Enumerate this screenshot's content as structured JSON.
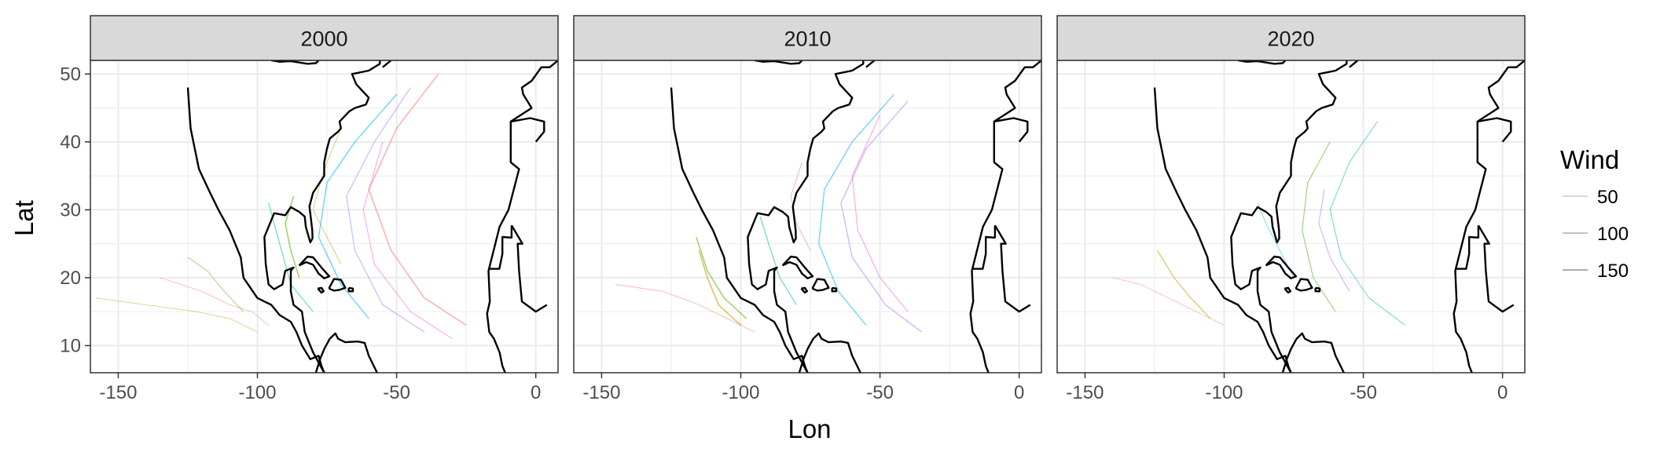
{
  "chart_data": {
    "type": "line",
    "subtype": "faceted map of storm tracks",
    "xlabel": "Lon",
    "ylabel": "Lat",
    "xlim": [
      -160,
      8
    ],
    "ylim": [
      6,
      52
    ],
    "xticks": [
      -150,
      -100,
      -50,
      0
    ],
    "xtick_labels": [
      "-150",
      "-100",
      "-50",
      "0"
    ],
    "yticks": [
      10,
      20,
      30,
      40,
      50
    ],
    "ytick_labels": [
      "10",
      "20",
      "30",
      "40",
      "50"
    ],
    "grid": true,
    "facets": [
      "2000",
      "2010",
      "2020"
    ],
    "legend": {
      "title": "Wind",
      "position": "right",
      "entries": [
        {
          "label": "50",
          "value": 50
        },
        {
          "label": "100",
          "value": 100
        },
        {
          "label": "150",
          "value": 150
        }
      ]
    },
    "colors": {
      "grid": "#ebebeb",
      "strip_fill": "#d9d9d9",
      "map_outline": "#000000",
      "track_palette": [
        "#f8766d",
        "#c49a00",
        "#53b400",
        "#00c094",
        "#00b6eb",
        "#a58aff",
        "#fb61d7"
      ]
    },
    "storm_tracks": [
      {
        "facet": "2000",
        "lon": [
          -96,
          -102,
          -110,
          -120,
          -135
        ],
        "lat": [
          13,
          15,
          16,
          18,
          20
        ],
        "wind": 45
      },
      {
        "facet": "2000",
        "lon": [
          -100,
          -110,
          -122,
          -140,
          -158
        ],
        "lat": [
          12,
          14,
          15,
          16,
          17
        ],
        "wind": 40
      },
      {
        "facet": "2000",
        "lon": [
          -105,
          -112,
          -118,
          -125
        ],
        "lat": [
          15,
          18,
          21,
          23
        ],
        "wind": 60
      },
      {
        "facet": "2000",
        "lon": [
          -80,
          -88,
          -92,
          -96
        ],
        "lat": [
          15,
          19,
          25,
          31
        ],
        "wind": 85
      },
      {
        "facet": "2000",
        "lon": [
          -60,
          -70,
          -78,
          -75,
          -65,
          -50
        ],
        "lat": [
          14,
          19,
          26,
          34,
          40,
          47
        ],
        "wind": 110
      },
      {
        "facet": "2000",
        "lon": [
          -40,
          -55,
          -65,
          -68,
          -58,
          -45
        ],
        "lat": [
          12,
          16,
          24,
          32,
          40,
          48
        ],
        "wind": 95
      },
      {
        "facet": "2000",
        "lon": [
          -30,
          -45,
          -58,
          -62,
          -55
        ],
        "lat": [
          11,
          15,
          22,
          30,
          40
        ],
        "wind": 70
      },
      {
        "facet": "2000",
        "lon": [
          -25,
          -40,
          -52,
          -60,
          -50,
          -35
        ],
        "lat": [
          13,
          17,
          24,
          33,
          42,
          50
        ],
        "wind": 120
      },
      {
        "facet": "2000",
        "lon": [
          -70,
          -75,
          -80,
          -76,
          -70
        ],
        "lat": [
          22,
          26,
          30,
          36,
          42
        ],
        "wind": 55
      },
      {
        "facet": "2000",
        "lon": [
          -85,
          -88,
          -90,
          -87
        ],
        "lat": [
          20,
          24,
          28,
          32
        ],
        "wind": 130
      },
      {
        "facet": "2010",
        "lon": [
          -95,
          -105,
          -115,
          -128,
          -145
        ],
        "lat": [
          12,
          14,
          16,
          18,
          19
        ],
        "wind": 50
      },
      {
        "facet": "2010",
        "lon": [
          -100,
          -108,
          -112,
          -115
        ],
        "lat": [
          13,
          16,
          20,
          24
        ],
        "wind": 140
      },
      {
        "facet": "2010",
        "lon": [
          -98,
          -106,
          -112,
          -116
        ],
        "lat": [
          14,
          17,
          21,
          26
        ],
        "wind": 120
      },
      {
        "facet": "2010",
        "lon": [
          -80,
          -86,
          -90,
          -93
        ],
        "lat": [
          16,
          20,
          25,
          29
        ],
        "wind": 90
      },
      {
        "facet": "2010",
        "lon": [
          -55,
          -65,
          -72,
          -70,
          -60,
          -45
        ],
        "lat": [
          13,
          18,
          25,
          33,
          40,
          47
        ],
        "wind": 100
      },
      {
        "facet": "2010",
        "lon": [
          -35,
          -48,
          -60,
          -64,
          -55,
          -40
        ],
        "lat": [
          12,
          16,
          23,
          31,
          39,
          46
        ],
        "wind": 110
      },
      {
        "facet": "2010",
        "lon": [
          -40,
          -50,
          -58,
          -60,
          -50
        ],
        "lat": [
          15,
          20,
          27,
          35,
          44
        ],
        "wind": 75
      },
      {
        "facet": "2010",
        "lon": [
          -75,
          -80,
          -82,
          -78
        ],
        "lat": [
          24,
          28,
          32,
          37
        ],
        "wind": 60
      },
      {
        "facet": "2020",
        "lon": [
          -100,
          -110,
          -120,
          -130,
          -140
        ],
        "lat": [
          13,
          15,
          17,
          19,
          20
        ],
        "wind": 40
      },
      {
        "facet": "2020",
        "lon": [
          -105,
          -112,
          -118,
          -124
        ],
        "lat": [
          14,
          17,
          20,
          24
        ],
        "wind": 100
      },
      {
        "facet": "2020",
        "lon": [
          -60,
          -68,
          -72,
          -70,
          -62
        ],
        "lat": [
          15,
          20,
          27,
          34,
          40
        ],
        "wind": 80
      },
      {
        "facet": "2020",
        "lon": [
          -35,
          -48,
          -58,
          -62,
          -55,
          -45
        ],
        "lat": [
          13,
          17,
          23,
          30,
          37,
          43
        ],
        "wind": 70
      },
      {
        "facet": "2020",
        "lon": [
          -75,
          -80,
          -85,
          -88
        ],
        "lat": [
          20,
          24,
          28,
          31
        ],
        "wind": 55
      },
      {
        "facet": "2020",
        "lon": [
          -55,
          -62,
          -66,
          -64
        ],
        "lat": [
          18,
          23,
          28,
          33
        ],
        "wind": 90
      }
    ]
  }
}
